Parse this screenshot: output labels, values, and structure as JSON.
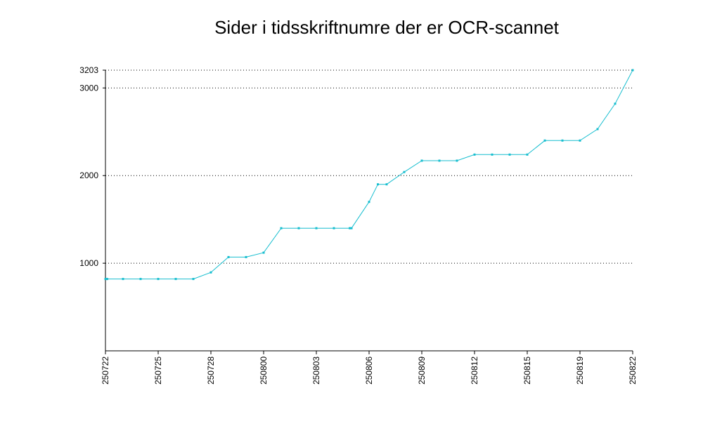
{
  "chart_data": {
    "type": "line",
    "title": "Sider i tidsskriftnumre der er OCR-scannet",
    "xlabel": "",
    "ylabel": "",
    "ylim": [
      0,
      3203
    ],
    "grid": "horizontal dotted",
    "legend": "none",
    "y_ticks": [
      3203,
      3000,
      2000,
      1000
    ],
    "x_ticks": [
      "250722",
      "250725",
      "250728",
      "250800",
      "250803",
      "250806",
      "250809",
      "250812",
      "250815",
      "250819",
      "250822"
    ],
    "x_tick_index": [
      0,
      3,
      6,
      9,
      12,
      15,
      18,
      21,
      24,
      27,
      30
    ],
    "colors": {
      "line": "#17becf",
      "marker": "#17becf",
      "grid": "#000000",
      "axis": "#000000"
    },
    "series": [
      {
        "x_index": [
          0,
          0.1,
          1,
          2,
          3,
          4,
          5,
          6,
          7,
          8,
          9,
          10,
          11,
          12,
          13,
          13.9,
          14,
          15,
          15.5,
          16,
          17,
          18,
          19,
          20,
          21,
          22,
          23,
          24,
          25,
          26,
          27,
          28,
          29,
          30
        ],
        "values": [
          820,
          820,
          820,
          820,
          820,
          820,
          820,
          895,
          1070,
          1070,
          1120,
          1400,
          1400,
          1400,
          1400,
          1400,
          1400,
          1700,
          1900,
          1900,
          2040,
          2170,
          2170,
          2170,
          2240,
          2240,
          2240,
          2240,
          2400,
          2400,
          2400,
          2530,
          2820,
          3203
        ]
      }
    ]
  }
}
